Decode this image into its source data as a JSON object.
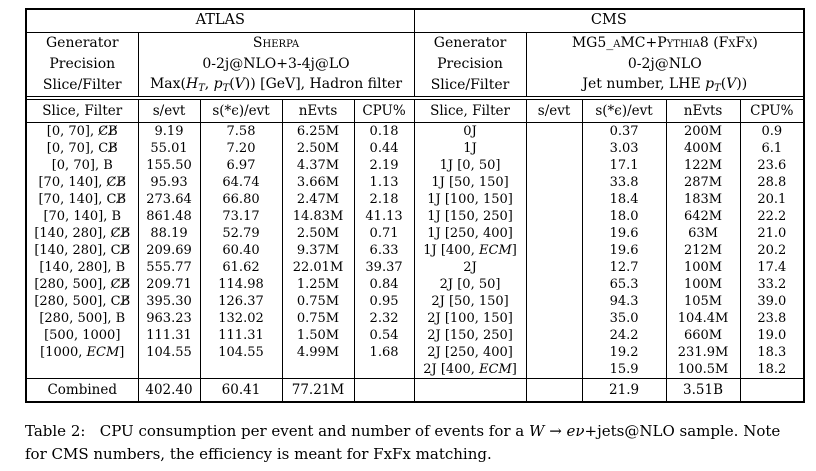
{
  "page": {
    "background": "#ffffff",
    "text_color": "#000000"
  },
  "table": {
    "atlas": {
      "title": "ATLAS",
      "meta": {
        "generator_label": "Generator",
        "generator_value": "Sherpa",
        "precision_label": "Precision",
        "precision_value": "0-2j@NLO+3-4j@LO",
        "slice_filter_label": "Slice/Filter",
        "slice_filter_segments": [
          {
            "t": "Max(",
            "s": "r"
          },
          {
            "t": "H",
            "s": "i"
          },
          {
            "t": "T",
            "s": "sub"
          },
          {
            "t": ", ",
            "s": "r"
          },
          {
            "t": "p",
            "s": "i"
          },
          {
            "t": "T",
            "s": "sub"
          },
          {
            "t": "(",
            "s": "r"
          },
          {
            "t": "V",
            "s": "i"
          },
          {
            "t": ")) [GeV], Hadron filter",
            "s": "r"
          }
        ]
      },
      "columns": [
        "Slice, Filter",
        "s/evt",
        "s(*ϵ)/evt",
        "nEvts",
        "CPU%"
      ],
      "rows": [
        [
          "[0, 70], C̸B̸",
          "9.19",
          "7.58",
          "6.25M",
          "0.18"
        ],
        [
          "[0, 70], CB̸",
          "55.01",
          "7.20",
          "2.50M",
          "0.44"
        ],
        [
          "[0, 70], B",
          "155.50",
          "6.97",
          "4.37M",
          "2.19"
        ],
        [
          "[70, 140], C̸B̸",
          "95.93",
          "64.74",
          "3.66M",
          "1.13"
        ],
        [
          "[70, 140], CB̸",
          "273.64",
          "66.80",
          "2.47M",
          "2.18"
        ],
        [
          "[70, 140], B",
          "861.48",
          "73.17",
          "14.83M",
          "41.13"
        ],
        [
          "[140, 280], C̸B̸",
          "88.19",
          "52.79",
          "2.50M",
          "0.71"
        ],
        [
          "[140, 280], CB̸",
          "209.69",
          "60.40",
          "9.37M",
          "6.33"
        ],
        [
          "[140, 280], B",
          "555.77",
          "61.62",
          "22.01M",
          "39.37"
        ],
        [
          "[280, 500], C̸B̸",
          "209.71",
          "114.98",
          "1.25M",
          "0.84"
        ],
        [
          "[280, 500], CB̸",
          "395.30",
          "126.37",
          "0.75M",
          "0.95"
        ],
        [
          "[280, 500], B",
          "963.23",
          "132.02",
          "0.75M",
          "2.32"
        ],
        [
          "[500, 1000]",
          "111.31",
          "111.31",
          "1.50M",
          "0.54"
        ],
        [
          "[1000, ECM]",
          "104.55",
          "104.55",
          "4.99M",
          "1.68"
        ],
        [
          "",
          "",
          "",
          "",
          ""
        ]
      ],
      "combined": [
        "Combined",
        "402.40",
        "60.41",
        "77.21M",
        ""
      ]
    },
    "cms": {
      "title": "CMS",
      "meta": {
        "generator_label": "Generator",
        "generator_value": "MG5_aMC+Pythia8 (FxFx)",
        "precision_label": "Precision",
        "precision_value": "0-2j@NLO",
        "slice_filter_label": "Slice/Filter",
        "slice_filter_segments": [
          {
            "t": "Jet number, LHE ",
            "s": "r"
          },
          {
            "t": "p",
            "s": "i"
          },
          {
            "t": "T",
            "s": "sub"
          },
          {
            "t": "(",
            "s": "r"
          },
          {
            "t": "V",
            "s": "i"
          },
          {
            "t": "))",
            "s": "r"
          }
        ]
      },
      "columns": [
        "Slice, Filter",
        "s/evt",
        "s(*ϵ)/evt",
        "nEvts",
        "CPU%"
      ],
      "rows": [
        [
          "0J",
          "",
          "0.37",
          "200M",
          "0.9"
        ],
        [
          "1J",
          "",
          "3.03",
          "400M",
          "6.1"
        ],
        [
          "1J [0, 50]",
          "",
          "17.1",
          "122M",
          "23.6"
        ],
        [
          "1J [50, 150]",
          "",
          "33.8",
          "287M",
          "28.8"
        ],
        [
          "1J [100, 150]",
          "",
          "18.4",
          "183M",
          "20.1"
        ],
        [
          "1J [150, 250]",
          "",
          "18.0",
          "642M",
          "22.2"
        ],
        [
          "1J [250, 400]",
          "",
          "19.6",
          "63M",
          "21.0"
        ],
        [
          "1J [400, ECM]",
          "",
          "19.6",
          "212M",
          "20.2"
        ],
        [
          "2J",
          "",
          "12.7",
          "100M",
          "17.4"
        ],
        [
          "2J [0, 50]",
          "",
          "65.3",
          "100M",
          "33.2"
        ],
        [
          "2J [50, 150]",
          "",
          "94.3",
          "105M",
          "39.0"
        ],
        [
          "2J [100, 150]",
          "",
          "35.0",
          "104.4M",
          "23.8"
        ],
        [
          "2J [150, 250]",
          "",
          "24.2",
          "660M",
          "19.0"
        ],
        [
          "2J [250, 400]",
          "",
          "19.2",
          "231.9M",
          "18.3"
        ],
        [
          "2J [400, ECM]",
          "",
          "15.9",
          "100.5M",
          "18.2"
        ]
      ],
      "combined": [
        "",
        "",
        "21.9",
        "3.51B",
        ""
      ]
    }
  },
  "caption": {
    "segments": [
      {
        "t": "Table 2:   ",
        "s": "r"
      },
      {
        "t": "CPU consumption per event and number of events for a ",
        "s": "r"
      },
      {
        "t": "W",
        "s": "i"
      },
      {
        "t": " → ",
        "s": "r"
      },
      {
        "t": "eν",
        "s": "i"
      },
      {
        "t": "+jets@NLO sample. Note for CMS numbers, the efficiency is meant for FxFx matching.",
        "s": "r"
      }
    ]
  }
}
